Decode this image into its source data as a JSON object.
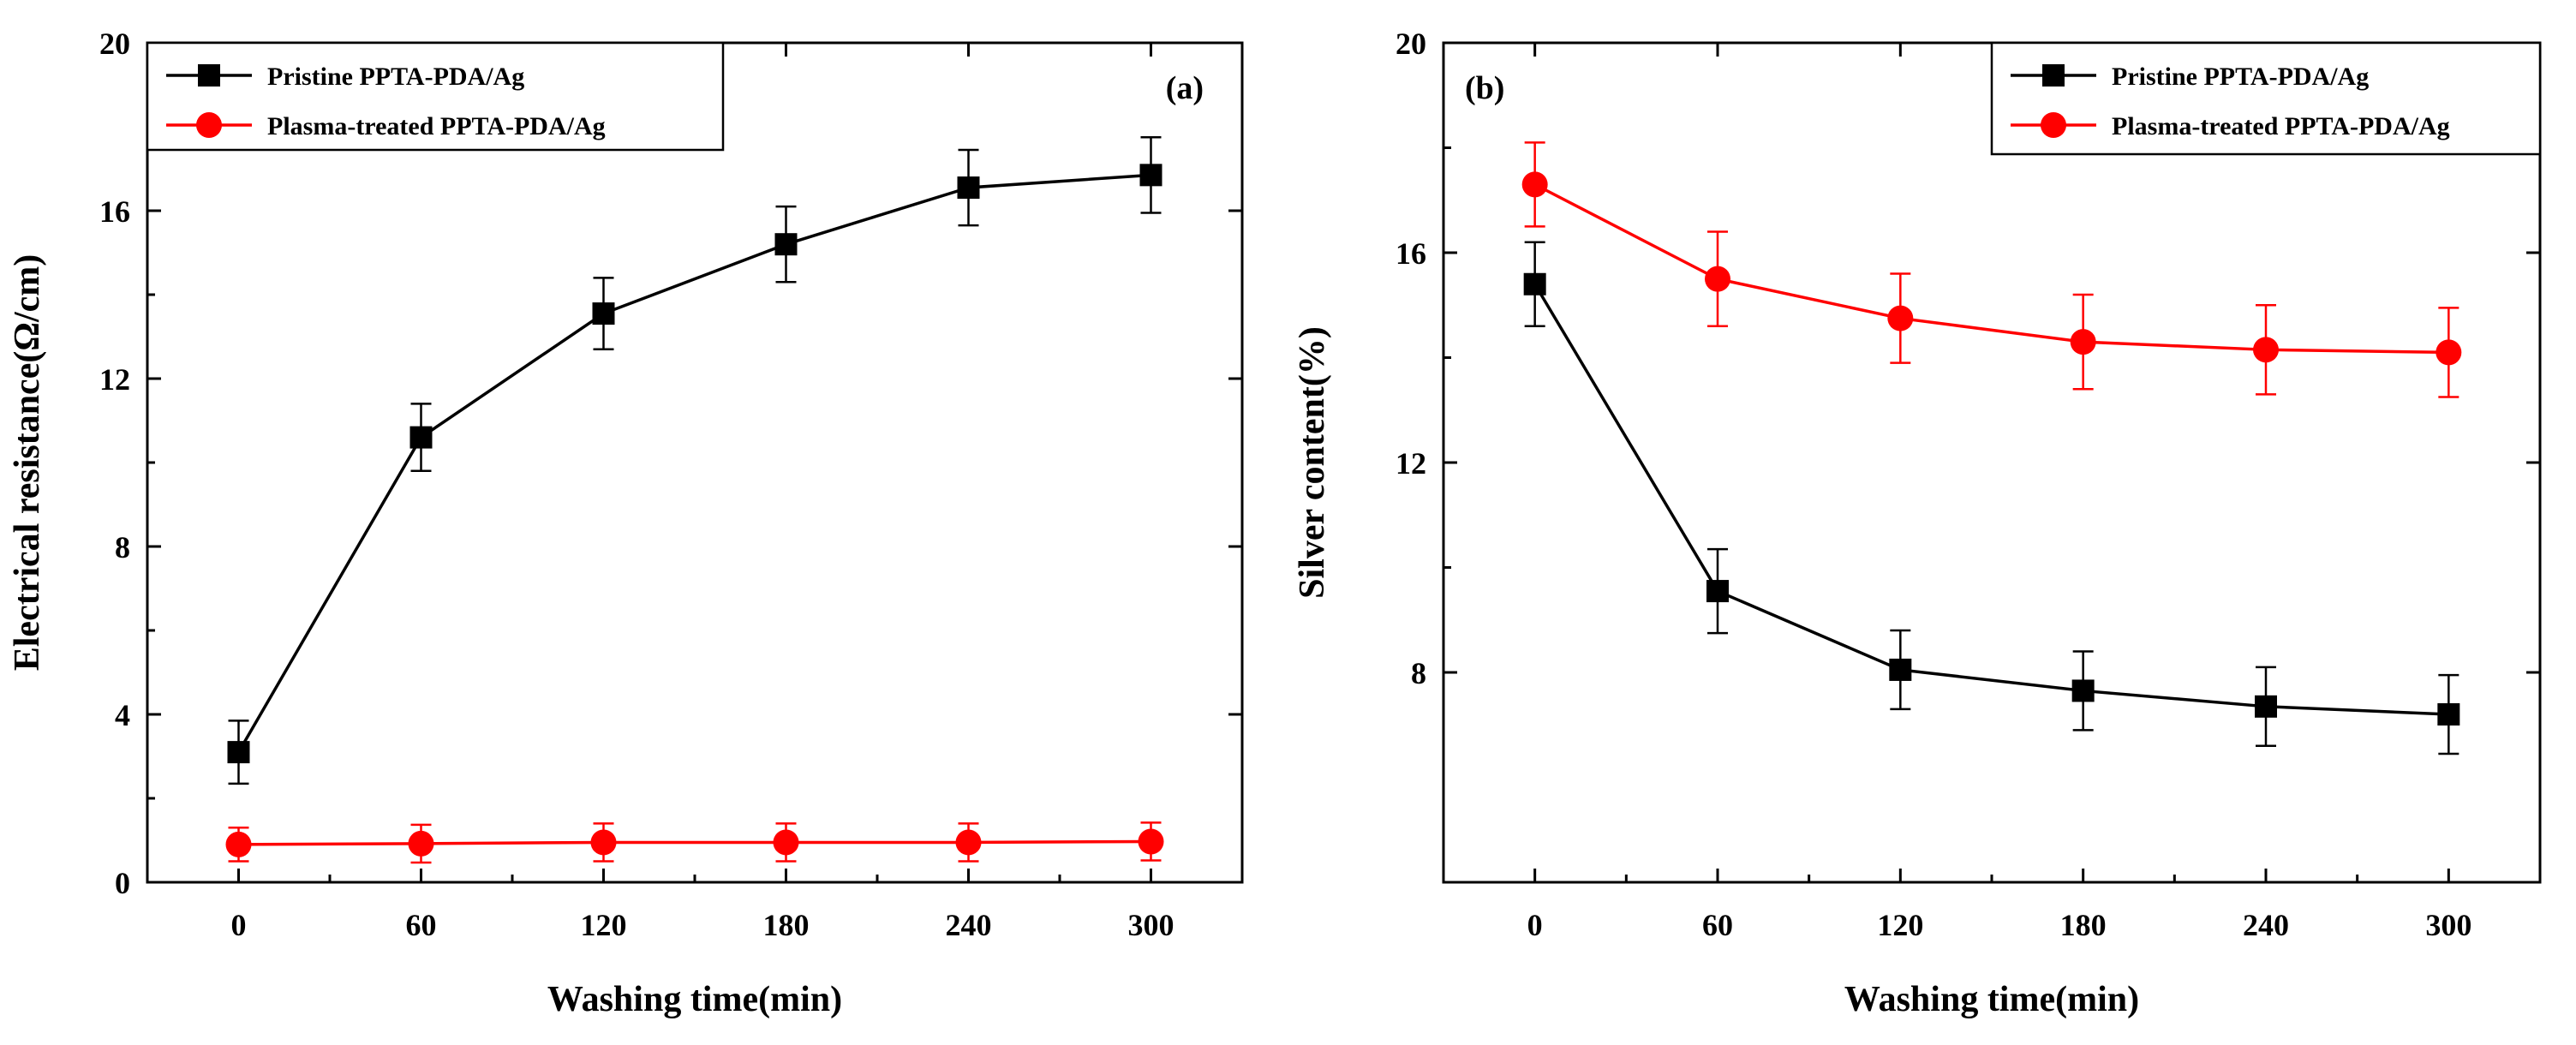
{
  "chart_data": [
    {
      "type": "line",
      "panel_label": "(a)",
      "xlabel": "Washing time(min)",
      "ylabel": "Electrical resistance(Ω/cm)",
      "x": [
        0,
        60,
        120,
        180,
        240,
        300
      ],
      "xticks": [
        "0",
        "60",
        "120",
        "180",
        "240",
        "300"
      ],
      "xlim": [
        -30,
        330
      ],
      "yticks": [
        "0",
        "4",
        "8",
        "12",
        "16",
        "20"
      ],
      "ylim": [
        0,
        20
      ],
      "grid": false,
      "legend_position": "top-left",
      "series": [
        {
          "name": "Pristine PPTA-PDA/Ag",
          "color": "#000000",
          "marker": "square",
          "values": [
            3.1,
            10.6,
            13.55,
            15.2,
            16.55,
            16.85
          ],
          "errors": [
            0.75,
            0.8,
            0.85,
            0.9,
            0.9,
            0.9
          ]
        },
        {
          "name": "Plasma-treated PPTA-PDA/Ag",
          "color": "#ff0000",
          "marker": "circle",
          "values": [
            0.9,
            0.92,
            0.95,
            0.95,
            0.95,
            0.97
          ],
          "errors": [
            0.4,
            0.45,
            0.45,
            0.45,
            0.45,
            0.45
          ]
        }
      ]
    },
    {
      "type": "line",
      "panel_label": "(b)",
      "xlabel": "Washing time(min)",
      "ylabel": "Silver content(%)",
      "x": [
        0,
        60,
        120,
        180,
        240,
        300
      ],
      "xticks": [
        "0",
        "60",
        "120",
        "180",
        "240",
        "300"
      ],
      "xlim": [
        -30,
        330
      ],
      "yticks": [
        "8",
        "12",
        "16",
        "20"
      ],
      "ylim": [
        4,
        20
      ],
      "grid": false,
      "legend_position": "top-right",
      "series": [
        {
          "name": "Pristine PPTA-PDA/Ag",
          "color": "#000000",
          "marker": "square",
          "values": [
            15.4,
            9.55,
            8.05,
            7.65,
            7.35,
            7.2
          ],
          "errors": [
            0.8,
            0.8,
            0.75,
            0.75,
            0.75,
            0.75
          ]
        },
        {
          "name": "Plasma-treated PPTA-PDA/Ag",
          "color": "#ff0000",
          "marker": "circle",
          "values": [
            17.3,
            15.5,
            14.75,
            14.3,
            14.15,
            14.1
          ],
          "errors": [
            0.8,
            0.9,
            0.85,
            0.9,
            0.85,
            0.85
          ]
        }
      ]
    }
  ]
}
